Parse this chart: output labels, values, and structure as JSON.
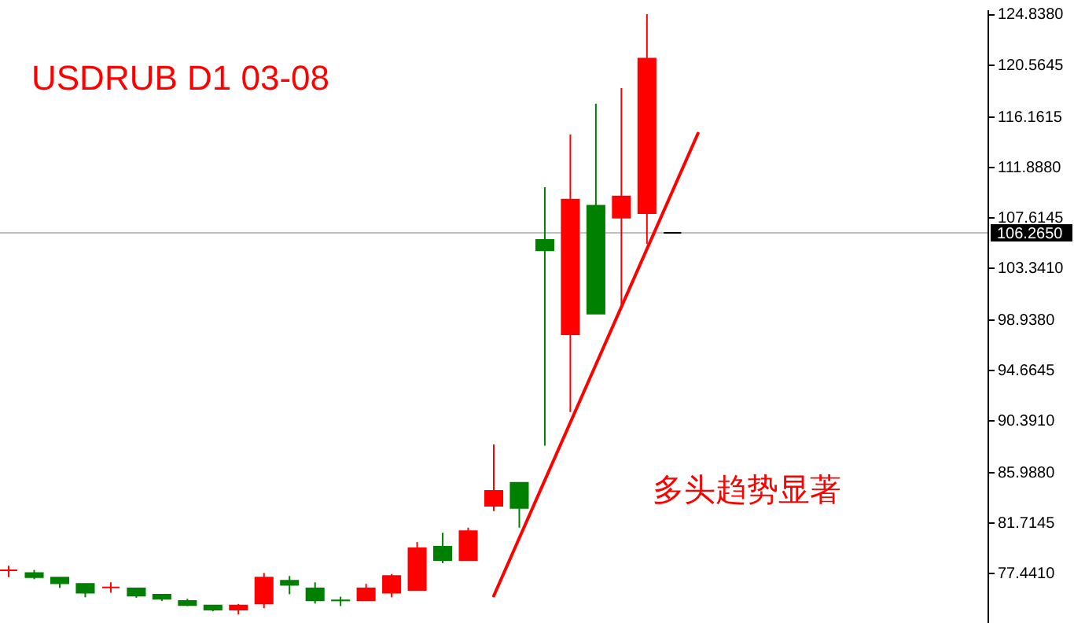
{
  "chart_data": {
    "type": "candlestick",
    "title": "USDRUB  D1  03-08",
    "annotations": [
      "多头趋势显著"
    ],
    "categories": [
      null,
      null,
      null,
      null,
      null,
      null,
      null,
      null,
      null,
      null,
      null,
      null,
      null,
      null,
      null,
      null,
      null,
      null,
      null,
      null,
      null,
      null,
      null,
      null,
      null,
      null,
      null,
      null,
      null,
      null,
      null,
      null,
      null,
      null,
      null,
      null,
      null,
      null,
      null
    ],
    "ohlc": [
      [
        77.66,
        78.06,
        77.09,
        77.66
      ],
      [
        77.44,
        77.7,
        76.91,
        77.09
      ],
      [
        77.05,
        77.05,
        76.17,
        76.56
      ],
      [
        76.52,
        76.52,
        75.38,
        75.77
      ],
      [
        76.22,
        76.65,
        75.77,
        76.22
      ],
      [
        76.13,
        76.13,
        75.34,
        75.51
      ],
      [
        75.6,
        75.6,
        75.07,
        75.25
      ],
      [
        75.07,
        75.25,
        74.64,
        74.72
      ],
      [
        74.68,
        74.68,
        74.2,
        74.33
      ],
      [
        74.33,
        74.81,
        73.93,
        74.68
      ],
      [
        74.85,
        77.44,
        74.46,
        77.05
      ],
      [
        76.78,
        77.18,
        75.64,
        76.43
      ],
      [
        76.13,
        76.65,
        74.85,
        75.12
      ],
      [
        75.12,
        75.43,
        74.64,
        75.11
      ],
      [
        75.12,
        76.52,
        75.12,
        76.13
      ],
      [
        75.77,
        77.35,
        75.38,
        77.18
      ],
      [
        76.0,
        80.06,
        76.0,
        79.54
      ],
      [
        79.67,
        80.85,
        78.27,
        78.53
      ],
      [
        78.53,
        81.28,
        78.53,
        80.98
      ],
      [
        83.13,
        88.34,
        82.69,
        84.4
      ],
      [
        85.09,
        85.09,
        81.28,
        82.95
      ],
      [
        105.67,
        110.13,
        88.24,
        104.79
      ],
      [
        97.66,
        114.6,
        91.09,
        109.08
      ],
      [
        108.56,
        117.22,
        99.41,
        99.41
      ],
      [
        107.55,
        118.54,
        100.19,
        109.35
      ],
      [
        107.94,
        124.8,
        105.31,
        121.03
      ],
      [
        106.265,
        106.265,
        106.265,
        106.265
      ],
      null,
      null,
      null,
      null,
      null,
      null,
      null,
      null,
      null,
      null,
      null,
      null
    ],
    "colors": [
      "#ff0000",
      "#008000",
      "#008000",
      "#008000",
      "#ff0000",
      "#008000",
      "#008000",
      "#008000",
      "#008000",
      "#ff0000",
      "#ff0000",
      "#008000",
      "#008000",
      "#008000",
      "#ff0000",
      "#ff0000",
      "#ff0000",
      "#008000",
      "#ff0000",
      "#ff0000",
      "#008000",
      "#008000",
      "#ff0000",
      "#008000",
      "#ff0000",
      "#ff0000",
      "#000000",
      null,
      null,
      null,
      null,
      null,
      null,
      null,
      null,
      null,
      null,
      null,
      null
    ],
    "series": [
      {
        "type": "line",
        "color": "#ff0000",
        "values": [
          null,
          null,
          null,
          null,
          null,
          null,
          null,
          null,
          null,
          null,
          null,
          null,
          null,
          null,
          null,
          null,
          null,
          null,
          null,
          75.5,
          null,
          null,
          null,
          null,
          null,
          null,
          null,
          114.7,
          null,
          null,
          null,
          null,
          null,
          null,
          null,
          null,
          null,
          null,
          null
        ]
      }
    ],
    "ylim": [
      73.2,
      125.2
    ],
    "yticks": [
      {
        "value": 124.838,
        "label": "124.8380"
      },
      {
        "value": 120.5645,
        "label": "120.5645"
      },
      {
        "value": 116.1615,
        "label": "116.1615"
      },
      {
        "value": 111.888,
        "label": "111.8880"
      },
      {
        "value": 107.6145,
        "label": "107.6145"
      },
      {
        "value": 103.341,
        "label": "103.3410"
      },
      {
        "value": 98.938,
        "label": "98.9380"
      },
      {
        "value": 94.6645,
        "label": "94.6645"
      },
      {
        "value": 90.391,
        "label": "90.3910"
      },
      {
        "value": 85.988,
        "label": "85.9880"
      },
      {
        "value": 81.7145,
        "label": "81.7145"
      },
      {
        "value": 77.441,
        "label": "77.4410"
      }
    ],
    "ref_lines": [
      {
        "axis": "y",
        "value": 106.265,
        "label": "106.2650",
        "color": "#c0c0c0"
      }
    ],
    "tick_labels": "y"
  }
}
